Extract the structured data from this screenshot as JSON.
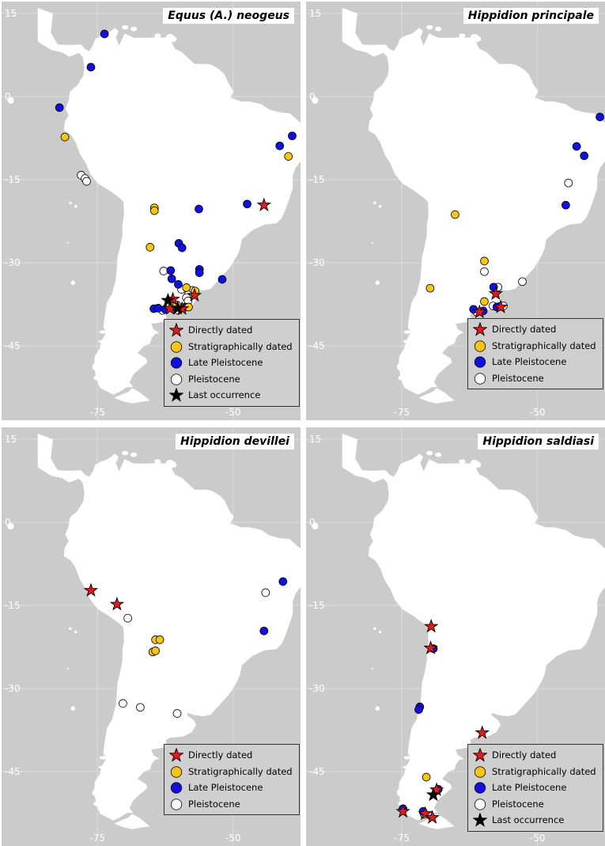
{
  "axes": {
    "lat_ticks": [
      "15",
      "0",
      "-15",
      "-30",
      "-45"
    ],
    "lon_ticks": [
      "-75",
      "-50"
    ],
    "lon_range": [
      -85,
      -30
    ],
    "lat_range": [
      -60,
      16
    ]
  },
  "legend_labels": {
    "directly_dated": "Directly dated",
    "stratigraphically_dated": "Stratigraphically dated",
    "late_pleistocene": "Late Pleistocene",
    "pleistocene": "Pleistocene",
    "last_occurrence": "Last occurrence"
  },
  "colors": {
    "background": "#cbcbcb",
    "land": "#ffffff",
    "directly_dated": "#e31a1c",
    "stratigraphically_dated": "#f5c518",
    "late_pleistocene": "#1010e0",
    "pleistocene": "#ffffff",
    "last_occurrence": "#000000"
  },
  "panels": [
    {
      "title": "Equus (A.) neogeus",
      "legend": [
        "directly_dated",
        "stratigraphically_dated",
        "late_pleistocene",
        "pleistocene",
        "last_occurrence"
      ],
      "points": [
        {
          "type": "late_pleistocene",
          "lon": -73.7,
          "lat": 11.3
        },
        {
          "type": "late_pleistocene",
          "lon": -76.2,
          "lat": 5.3
        },
        {
          "type": "late_pleistocene",
          "lon": -82.0,
          "lat": -2.0
        },
        {
          "type": "stratigraphically_dated",
          "lon": -81.0,
          "lat": -7.3
        },
        {
          "type": "pleistocene",
          "lon": -78.0,
          "lat": -14.2
        },
        {
          "type": "pleistocene",
          "lon": -77.3,
          "lat": -14.8
        },
        {
          "type": "pleistocene",
          "lon": -77.0,
          "lat": -15.3
        },
        {
          "type": "late_pleistocene",
          "lon": -36.3,
          "lat": -5.5
        },
        {
          "type": "late_pleistocene",
          "lon": -39.1,
          "lat": -7.1
        },
        {
          "type": "late_pleistocene",
          "lon": -35.0,
          "lat": -8.2
        },
        {
          "type": "late_pleistocene",
          "lon": -41.4,
          "lat": -8.9
        },
        {
          "type": "stratigraphically_dated",
          "lon": -39.8,
          "lat": -10.8
        },
        {
          "type": "late_pleistocene",
          "lon": -47.4,
          "lat": -19.4
        },
        {
          "type": "directly_dated",
          "lon": -44.3,
          "lat": -19.6
        },
        {
          "type": "stratigraphically_dated",
          "lon": -64.5,
          "lat": -20.1
        },
        {
          "type": "stratigraphically_dated",
          "lon": -64.5,
          "lat": -20.6
        },
        {
          "type": "late_pleistocene",
          "lon": -56.3,
          "lat": -20.3
        },
        {
          "type": "stratigraphically_dated",
          "lon": -65.3,
          "lat": -27.2
        },
        {
          "type": "late_pleistocene",
          "lon": -60.0,
          "lat": -26.5
        },
        {
          "type": "late_pleistocene",
          "lon": -59.4,
          "lat": -27.3
        },
        {
          "type": "pleistocene",
          "lon": -62.8,
          "lat": -31.5
        },
        {
          "type": "late_pleistocene",
          "lon": -61.5,
          "lat": -31.4
        },
        {
          "type": "late_pleistocene",
          "lon": -56.2,
          "lat": -31.2
        },
        {
          "type": "late_pleistocene",
          "lon": -56.2,
          "lat": -31.8
        },
        {
          "type": "late_pleistocene",
          "lon": -61.3,
          "lat": -32.9
        },
        {
          "type": "late_pleistocene",
          "lon": -52.0,
          "lat": -33.0
        },
        {
          "type": "late_pleistocene",
          "lon": -60.1,
          "lat": -33.9
        },
        {
          "type": "stratigraphically_dated",
          "lon": -58.6,
          "lat": -34.5
        },
        {
          "type": "pleistocene",
          "lon": -59.5,
          "lat": -34.8
        },
        {
          "type": "pleistocene",
          "lon": -57.5,
          "lat": -35.0
        },
        {
          "type": "stratigraphically_dated",
          "lon": -57.0,
          "lat": -35.1
        },
        {
          "type": "pleistocene",
          "lon": -58.3,
          "lat": -35.8
        },
        {
          "type": "directly_dated",
          "lon": -57.1,
          "lat": -35.9
        },
        {
          "type": "pleistocene",
          "lon": -58.6,
          "lat": -36.3
        },
        {
          "type": "pleistocene",
          "lon": -58.3,
          "lat": -36.9
        },
        {
          "type": "late_pleistocene",
          "lon": -64.6,
          "lat": -38.3
        },
        {
          "type": "late_pleistocene",
          "lon": -63.8,
          "lat": -38.2
        },
        {
          "type": "pleistocene",
          "lon": -63.0,
          "lat": -38.6
        },
        {
          "type": "late_pleistocene",
          "lon": -62.5,
          "lat": -38.4
        },
        {
          "type": "last_occurrence",
          "lon": -62.0,
          "lat": -36.8
        },
        {
          "type": "directly_dated",
          "lon": -61.1,
          "lat": -36.6
        },
        {
          "type": "stratigraphically_dated",
          "lon": -61.6,
          "lat": -37.6
        },
        {
          "type": "directly_dated",
          "lon": -61.6,
          "lat": -38.3
        },
        {
          "type": "late_pleistocene",
          "lon": -60.8,
          "lat": -38.0
        },
        {
          "type": "stratigraphically_dated",
          "lon": -60.4,
          "lat": -37.6
        },
        {
          "type": "pleistocene",
          "lon": -60.1,
          "lat": -38.6
        },
        {
          "type": "last_occurrence",
          "lon": -60.2,
          "lat": -38.2
        },
        {
          "type": "directly_dated",
          "lon": -59.4,
          "lat": -38.3
        },
        {
          "type": "late_pleistocene",
          "lon": -58.8,
          "lat": -38.0
        },
        {
          "type": "stratigraphically_dated",
          "lon": -58.2,
          "lat": -38.0
        }
      ]
    },
    {
      "title": "Hippidion principale",
      "legend": [
        "directly_dated",
        "stratigraphically_dated",
        "late_pleistocene",
        "pleistocene"
      ],
      "points": [
        {
          "type": "late_pleistocene",
          "lon": -38.5,
          "lat": -3.7
        },
        {
          "type": "pleistocene",
          "lon": -35.8,
          "lat": -7.2
        },
        {
          "type": "pleistocene",
          "lon": -35.1,
          "lat": -7.7
        },
        {
          "type": "late_pleistocene",
          "lon": -42.8,
          "lat": -9.0
        },
        {
          "type": "late_pleistocene",
          "lon": -41.4,
          "lat": -10.7
        },
        {
          "type": "pleistocene",
          "lon": -44.3,
          "lat": -15.6
        },
        {
          "type": "late_pleistocene",
          "lon": -44.8,
          "lat": -19.6
        },
        {
          "type": "stratigraphically_dated",
          "lon": -65.2,
          "lat": -21.3
        },
        {
          "type": "stratigraphically_dated",
          "lon": -59.8,
          "lat": -29.7
        },
        {
          "type": "pleistocene",
          "lon": -59.8,
          "lat": -31.6
        },
        {
          "type": "stratigraphically_dated",
          "lon": -69.8,
          "lat": -34.6
        },
        {
          "type": "pleistocene",
          "lon": -52.8,
          "lat": -33.4
        },
        {
          "type": "late_pleistocene",
          "lon": -58.1,
          "lat": -34.4
        },
        {
          "type": "pleistocene",
          "lon": -57.3,
          "lat": -34.4
        },
        {
          "type": "directly_dated",
          "lon": -57.7,
          "lat": -35.6
        },
        {
          "type": "stratigraphically_dated",
          "lon": -59.8,
          "lat": -37.0
        },
        {
          "type": "pleistocene",
          "lon": -58.2,
          "lat": -37.8
        },
        {
          "type": "late_pleistocene",
          "lon": -61.8,
          "lat": -38.4
        },
        {
          "type": "pleistocene",
          "lon": -61.2,
          "lat": -38.9
        },
        {
          "type": "directly_dated",
          "lon": -60.7,
          "lat": -38.9
        },
        {
          "type": "late_pleistocene",
          "lon": -60.0,
          "lat": -38.7
        },
        {
          "type": "late_pleistocene",
          "lon": -57.5,
          "lat": -38.0
        },
        {
          "type": "pleistocene",
          "lon": -57.0,
          "lat": -37.9
        },
        {
          "type": "directly_dated",
          "lon": -56.8,
          "lat": -38.0
        },
        {
          "type": "pleistocene",
          "lon": -56.3,
          "lat": -37.8
        }
      ]
    },
    {
      "title": "Hippidion devillei",
      "legend": [
        "directly_dated",
        "stratigraphically_dated",
        "late_pleistocene",
        "pleistocene"
      ],
      "points": [
        {
          "type": "directly_dated",
          "lon": -76.2,
          "lat": -12.3
        },
        {
          "type": "directly_dated",
          "lon": -71.4,
          "lat": -14.8
        },
        {
          "type": "pleistocene",
          "lon": -69.4,
          "lat": -17.3
        },
        {
          "type": "stratigraphically_dated",
          "lon": -64.3,
          "lat": -21.2
        },
        {
          "type": "stratigraphically_dated",
          "lon": -63.5,
          "lat": -21.2
        },
        {
          "type": "stratigraphically_dated",
          "lon": -64.8,
          "lat": -23.4
        },
        {
          "type": "stratigraphically_dated",
          "lon": -64.3,
          "lat": -23.2
        },
        {
          "type": "pleistocene",
          "lon": -70.3,
          "lat": -32.7
        },
        {
          "type": "pleistocene",
          "lon": -67.1,
          "lat": -33.4
        },
        {
          "type": "pleistocene",
          "lon": -60.3,
          "lat": -34.5
        },
        {
          "type": "pleistocene",
          "lon": -44.0,
          "lat": -12.7
        },
        {
          "type": "late_pleistocene",
          "lon": -40.8,
          "lat": -10.7
        },
        {
          "type": "late_pleistocene",
          "lon": -44.3,
          "lat": -19.6
        }
      ]
    },
    {
      "title": "Hippidion saldiasi",
      "legend": [
        "directly_dated",
        "stratigraphically_dated",
        "late_pleistocene",
        "pleistocene",
        "last_occurrence"
      ],
      "points": [
        {
          "type": "directly_dated",
          "lon": -69.6,
          "lat": -18.8
        },
        {
          "type": "late_pleistocene",
          "lon": -69.2,
          "lat": -22.8
        },
        {
          "type": "directly_dated",
          "lon": -69.7,
          "lat": -22.7
        },
        {
          "type": "late_pleistocene",
          "lon": -71.7,
          "lat": -33.3
        },
        {
          "type": "late_pleistocene",
          "lon": -71.9,
          "lat": -33.8
        },
        {
          "type": "directly_dated",
          "lon": -60.2,
          "lat": -38.0
        },
        {
          "type": "stratigraphically_dated",
          "lon": -70.5,
          "lat": -46.0
        },
        {
          "type": "directly_dated",
          "lon": -68.6,
          "lat": -48.3
        },
        {
          "type": "late_pleistocene",
          "lon": -68.3,
          "lat": -48.2
        },
        {
          "type": "last_occurrence",
          "lon": -69.2,
          "lat": -49.2
        },
        {
          "type": "late_pleistocene",
          "lon": -74.8,
          "lat": -51.7
        },
        {
          "type": "directly_dated",
          "lon": -74.8,
          "lat": -52.2
        },
        {
          "type": "late_pleistocene",
          "lon": -71.1,
          "lat": -52.2
        },
        {
          "type": "directly_dated",
          "lon": -70.7,
          "lat": -52.6
        },
        {
          "type": "pleistocene",
          "lon": -70.9,
          "lat": -52.7
        },
        {
          "type": "directly_dated",
          "lon": -69.4,
          "lat": -53.3
        }
      ]
    }
  ]
}
